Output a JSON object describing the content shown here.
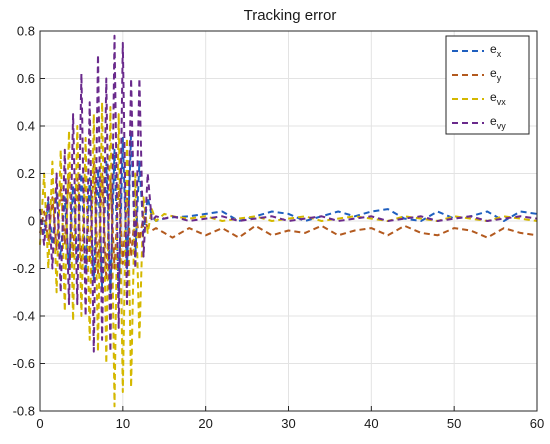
{
  "chart_data": {
    "type": "line",
    "title": "Tracking error",
    "xlabel": "",
    "ylabel": "",
    "xlim": [
      0,
      60
    ],
    "ylim": [
      -0.8,
      0.8
    ],
    "xticks": [
      "0",
      "10",
      "20",
      "30",
      "40",
      "50",
      "60"
    ],
    "yticks": [
      "0.8",
      "0.6",
      "0.4",
      "0.2",
      "0",
      "-0.2",
      "-0.4",
      "-0.6",
      "-0.8"
    ],
    "grid": true,
    "legend_position": "top-right",
    "series": [
      {
        "name_base": "e",
        "name_sub": "x",
        "color": "#1f5fbf",
        "x": [
          0,
          0.5,
          1,
          1.5,
          2,
          2.5,
          3,
          3.5,
          4,
          4.5,
          5,
          5.5,
          6,
          6.5,
          7,
          7.5,
          8,
          8.5,
          9,
          9.5,
          10,
          10.5,
          11,
          11.5,
          12,
          12.5,
          13,
          13.5,
          14,
          15,
          16,
          18,
          20,
          22,
          24,
          26,
          28,
          30,
          32,
          34,
          36,
          38,
          40,
          42,
          44,
          46,
          48,
          50,
          52,
          54,
          56,
          58,
          60
        ],
        "y": [
          0.05,
          -0.05,
          0.08,
          -0.1,
          0.12,
          -0.15,
          0.1,
          -0.2,
          0.15,
          -0.18,
          0.2,
          -0.22,
          0.18,
          -0.25,
          0.22,
          -0.28,
          0.25,
          -0.3,
          0.3,
          -0.32,
          0.35,
          -0.2,
          0.38,
          -0.15,
          0.25,
          -0.05,
          0.1,
          0.02,
          0.0,
          0.01,
          0.015,
          0.02,
          0.03,
          0.04,
          0.0,
          0.02,
          0.04,
          0.03,
          0.0,
          0.02,
          0.04,
          0.02,
          0.04,
          0.05,
          0.01,
          0.0,
          0.04,
          0.01,
          0.02,
          0.04,
          0.0,
          0.04,
          0.03
        ]
      },
      {
        "name_base": "e",
        "name_sub": "y",
        "color": "#b35a1f",
        "x": [
          0,
          0.5,
          1,
          1.5,
          2,
          2.5,
          3,
          3.5,
          4,
          4.5,
          5,
          5.5,
          6,
          6.5,
          7,
          7.5,
          8,
          8.5,
          9,
          9.5,
          10,
          10.5,
          11,
          11.5,
          12,
          12.5,
          13,
          13.5,
          14,
          15,
          16,
          18,
          20,
          22,
          24,
          26,
          28,
          30,
          32,
          34,
          36,
          38,
          40,
          42,
          44,
          46,
          48,
          50,
          52,
          54,
          56,
          58,
          60
        ],
        "y": [
          -0.05,
          0.04,
          -0.08,
          0.1,
          -0.12,
          0.15,
          -0.1,
          0.2,
          -0.15,
          0.18,
          -0.2,
          0.22,
          -0.18,
          0.25,
          -0.22,
          0.2,
          -0.25,
          0.18,
          -0.2,
          0.15,
          -0.18,
          0.1,
          -0.15,
          0.05,
          -0.08,
          0.02,
          -0.03,
          -0.04,
          -0.03,
          -0.05,
          -0.07,
          -0.03,
          -0.06,
          -0.03,
          -0.07,
          -0.02,
          -0.06,
          -0.04,
          -0.05,
          -0.02,
          -0.06,
          -0.04,
          -0.03,
          -0.06,
          -0.02,
          -0.05,
          -0.06,
          -0.03,
          -0.04,
          -0.07,
          -0.03,
          -0.05,
          -0.06
        ]
      },
      {
        "name_base": "e",
        "name_sub": "vx",
        "color": "#d4b800",
        "x": [
          0,
          0.5,
          1,
          1.5,
          2,
          2.5,
          3,
          3.5,
          4,
          4.5,
          5,
          5.5,
          6,
          6.5,
          7,
          7.5,
          8,
          8.5,
          9,
          9.5,
          10,
          10.5,
          11,
          11.5,
          12,
          12.5,
          13,
          13.5,
          14,
          15,
          16,
          18,
          20,
          22,
          24,
          26,
          28,
          30,
          32,
          34,
          36,
          38,
          40,
          42,
          44,
          46,
          48,
          50,
          52,
          54,
          56,
          58,
          60
        ],
        "y": [
          -0.1,
          0.2,
          -0.2,
          0.25,
          -0.3,
          0.3,
          -0.38,
          0.38,
          -0.42,
          0.4,
          -0.4,
          0.35,
          -0.5,
          0.45,
          -0.55,
          0.5,
          -0.6,
          0.48,
          -0.78,
          0.45,
          -0.72,
          0.35,
          -0.7,
          0.2,
          -0.5,
          0.1,
          -0.05,
          0.05,
          0.0,
          0.03,
          0.02,
          0.01,
          0.02,
          0.0,
          0.01,
          0.02,
          0.0,
          0.01,
          0.02,
          0.0,
          0.01,
          0.02,
          0.01,
          0.0,
          0.02,
          0.01,
          0.0,
          0.02,
          0.01,
          0.0,
          0.02,
          0.01,
          0.0
        ]
      },
      {
        "name_base": "e",
        "name_sub": "vy",
        "color": "#6a2a8c",
        "x": [
          0,
          0.5,
          1,
          1.5,
          2,
          2.5,
          3,
          3.5,
          4,
          4.5,
          5,
          5.5,
          6,
          6.5,
          7,
          7.5,
          8,
          8.5,
          9,
          9.5,
          10,
          10.5,
          11,
          11.5,
          12,
          12.5,
          13,
          13.5,
          14,
          15,
          16,
          18,
          20,
          22,
          24,
          26,
          28,
          30,
          32,
          34,
          36,
          38,
          40,
          42,
          44,
          46,
          48,
          50,
          52,
          54,
          56,
          58,
          60
        ],
        "y": [
          0.05,
          -0.1,
          0.1,
          -0.2,
          0.2,
          -0.3,
          0.3,
          -0.35,
          0.45,
          -0.35,
          0.62,
          -0.4,
          0.5,
          -0.55,
          0.7,
          -0.5,
          0.6,
          -0.55,
          0.78,
          -0.45,
          0.75,
          -0.35,
          0.6,
          -0.2,
          0.6,
          -0.15,
          0.2,
          0.0,
          0.02,
          0.01,
          0.02,
          0.0,
          0.01,
          0.02,
          0.0,
          0.01,
          0.02,
          0.0,
          0.01,
          0.02,
          0.0,
          0.01,
          0.02,
          0.0,
          0.01,
          0.02,
          0.0,
          0.01,
          0.02,
          0.0,
          0.01,
          0.02,
          0.01
        ]
      }
    ]
  }
}
